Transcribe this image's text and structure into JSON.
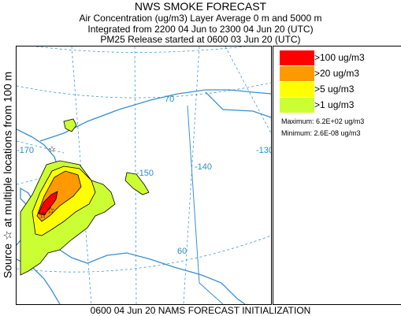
{
  "header": {
    "title": "NWS SMOKE FORECAST",
    "line1": "Air Concentration (ug/m3) Layer Average    0 m and  5000 m",
    "line2": "Integrated from 2200 04 Jun to 2300 04 Jun 20 (UTC)",
    "line3": "PM25 Release started at 0600 03 Jun 20 (UTC)"
  },
  "side_label": "Source ☆  at multiple locations   from  100 m",
  "bottom_label": "0600 04 Jun 20 NAMS FORECAST INITIALIZATION",
  "legend": {
    "items": [
      {
        "label": ">100 ug/m3",
        "color": "#ff0000"
      },
      {
        "label": ">20 ug/m3",
        "color": "#ff9900"
      },
      {
        "label": ">5 ug/m3",
        "color": "#ffff00"
      },
      {
        "label": ">1 ug/m3",
        "color": "#ccff33"
      }
    ],
    "maximum": "Maximum: 6.2E+02 ug/m3",
    "minimum": "Minimum: 2.6E-08 ug/m3"
  },
  "map": {
    "grid_labels": [
      "-170",
      "-150",
      "-140",
      "-130",
      "70",
      "60"
    ],
    "grid_color": "#2a8fc7",
    "coast_color": "#3a8fd0"
  }
}
